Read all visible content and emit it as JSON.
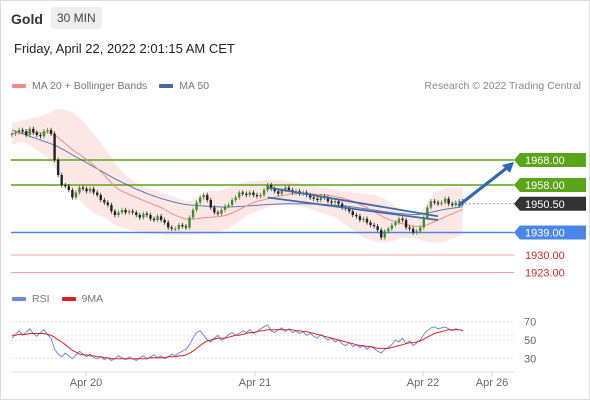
{
  "header": {
    "instrument": "Gold",
    "timeframe": "30 MIN",
    "datetime": "Friday, April 22, 2022 2:01:15 AM CET"
  },
  "legend": {
    "ma20_label": "MA 20 + Bollinger Bands",
    "ma50_label": "MA 50",
    "copyright": "Research © 2022 Trading Central",
    "rsi_label": "RSI",
    "rsi_ma_label": "9MA"
  },
  "colors": {
    "ma20": "#f28b82",
    "ma50": "#3e6aa8",
    "bollinger_fill": "#fde3e1",
    "resistance": "#58a617",
    "support": "#4a86e8",
    "target_line": "#f5a3a3",
    "target_text": "#d62a2a",
    "last_price": "#333333",
    "arrow": "#2f67b2",
    "rsi": "#6b8cde",
    "rsi_ma": "#e02020",
    "candle_up": "#3c8f2f",
    "candle_down": "#222222"
  },
  "chart_data": [
    {
      "type": "candlestick",
      "title": "Gold",
      "timeframe": "30 MIN",
      "x_labels": [
        "Apr 20",
        "Apr 21",
        "Apr 22",
        "Apr 26"
      ],
      "ylim": [
        1918,
        1992
      ],
      "levels": [
        {
          "value": 1968.0,
          "label": "1968.00",
          "kind": "resistance"
        },
        {
          "value": 1958.0,
          "label": "1958.00",
          "kind": "resistance"
        },
        {
          "value": 1950.5,
          "label": "1950.50",
          "kind": "last"
        },
        {
          "value": 1939.0,
          "label": "1939.00",
          "kind": "support"
        },
        {
          "value": 1930.0,
          "label": "1930.00",
          "kind": "target"
        },
        {
          "value": 1923.0,
          "label": "1923.00",
          "kind": "target"
        }
      ],
      "close": [
        1978.5,
        1979.0,
        1980.0,
        1979.5,
        1978.0,
        1980.5,
        1979.0,
        1978.0,
        1977.5,
        1979.5,
        1980.0,
        1978.5,
        1968.0,
        1962.0,
        1958.0,
        1957.5,
        1956.0,
        1953.0,
        1955.0,
        1957.0,
        1956.5,
        1955.5,
        1956.5,
        1955.0,
        1954.0,
        1952.0,
        1951.0,
        1950.0,
        1947.5,
        1946.0,
        1947.0,
        1948.0,
        1947.0,
        1947.5,
        1947.0,
        1946.0,
        1945.0,
        1946.5,
        1946.0,
        1944.5,
        1944.0,
        1945.5,
        1944.0,
        1943.0,
        1941.0,
        1940.5,
        1940.5,
        1942.0,
        1941.5,
        1941.0,
        1945.0,
        1948.0,
        1951.0,
        1953.0,
        1954.0,
        1952.0,
        1949.0,
        1947.0,
        1946.5,
        1948.0,
        1949.5,
        1950.0,
        1952.0,
        1953.0,
        1955.0,
        1954.5,
        1954.0,
        1955.0,
        1954.0,
        1953.5,
        1954.0,
        1956.0,
        1958.0,
        1956.5,
        1955.5,
        1954.5,
        1956.0,
        1957.0,
        1956.0,
        1955.0,
        1955.5,
        1954.5,
        1955.0,
        1954.0,
        1953.0,
        1952.5,
        1952.0,
        1953.5,
        1953.0,
        1951.5,
        1951.0,
        1951.5,
        1950.5,
        1949.0,
        1948.5,
        1947.5,
        1946.0,
        1945.5,
        1944.0,
        1944.5,
        1943.0,
        1942.0,
        1941.5,
        1940.0,
        1937.0,
        1939.5,
        1940.5,
        1942.0,
        1943.0,
        1944.5,
        1944.0,
        1941.0,
        1940.5,
        1939.0,
        1939.5,
        1941.0,
        1945.0,
        1949.0,
        1951.5,
        1951.0,
        1950.5,
        1951.0,
        1952.5,
        1950.5,
        1950.0,
        1951.0,
        1951.5,
        1950.5
      ],
      "ma20": [
        1978.5,
        1978.7,
        1979.0,
        1979.1,
        1978.9,
        1979.2,
        1979.1,
        1979.0,
        1978.8,
        1978.9,
        1979.0,
        1978.9,
        1978.1,
        1977.0,
        1975.7,
        1974.6,
        1973.4,
        1972.2,
        1971.1,
        1970.3,
        1969.3,
        1968.2,
        1967.1,
        1965.9,
        1964.6,
        1963.3,
        1961.9,
        1960.4,
        1958.9,
        1957.3,
        1956.2,
        1955.5,
        1954.9,
        1954.2,
        1953.6,
        1953.0,
        1952.4,
        1951.8,
        1951.3,
        1950.7,
        1950.1,
        1949.6,
        1949.0,
        1948.2,
        1947.4,
        1946.6,
        1945.9,
        1945.3,
        1944.8,
        1944.4,
        1944.3,
        1944.4,
        1944.5,
        1944.7,
        1944.9,
        1945.0,
        1945.1,
        1945.2,
        1945.3,
        1945.5,
        1945.8,
        1946.2,
        1946.8,
        1947.5,
        1948.2,
        1948.9,
        1949.6,
        1950.3,
        1950.9,
        1951.5,
        1951.8,
        1952.1,
        1952.5,
        1952.8,
        1953.1,
        1953.4,
        1953.7,
        1954.0,
        1954.2,
        1954.4,
        1954.5,
        1954.6,
        1954.6,
        1954.6,
        1954.5,
        1954.4,
        1954.3,
        1954.2,
        1954.1,
        1953.9,
        1953.7,
        1953.4,
        1953.1,
        1952.8,
        1952.4,
        1952.0,
        1951.5,
        1950.9,
        1950.3,
        1949.6,
        1948.9,
        1948.1,
        1947.4,
        1946.6,
        1945.7,
        1944.9,
        1944.3,
        1943.8,
        1943.3,
        1942.9,
        1942.5,
        1942.2,
        1941.9,
        1941.6,
        1941.4,
        1941.4,
        1941.7,
        1942.1,
        1942.7,
        1943.4,
        1944.0,
        1944.6,
        1945.3,
        1945.9,
        1946.5,
        1947.1,
        1947.7,
        1948.2
      ],
      "bb_upper": [
        1983.0,
        1983.0,
        1983.5,
        1984.0,
        1984.0,
        1984.5,
        1985.0,
        1985.0,
        1985.5,
        1986.0,
        1986.5,
        1987.0,
        1988.0,
        1988.5,
        1988.5,
        1988.0,
        1987.5,
        1987.0,
        1986.0,
        1985.0,
        1983.5,
        1982.0,
        1980.0,
        1978.5,
        1977.0,
        1975.0,
        1973.0,
        1971.0,
        1969.0,
        1967.0,
        1965.0,
        1963.5,
        1962.0,
        1961.0,
        1960.0,
        1959.0,
        1958.0,
        1957.5,
        1957.0,
        1956.5,
        1956.0,
        1955.5,
        1955.0,
        1954.5,
        1954.0,
        1953.5,
        1953.0,
        1952.5,
        1952.0,
        1951.5,
        1951.5,
        1952.0,
        1953.0,
        1954.0,
        1955.0,
        1955.5,
        1955.5,
        1955.5,
        1955.5,
        1956.0,
        1956.5,
        1957.0,
        1957.5,
        1958.0,
        1958.5,
        1959.0,
        1959.0,
        1959.5,
        1959.5,
        1959.5,
        1959.5,
        1960.0,
        1960.0,
        1960.0,
        1960.0,
        1960.0,
        1960.0,
        1959.5,
        1959.5,
        1959.0,
        1959.0,
        1958.5,
        1958.5,
        1958.0,
        1958.0,
        1957.5,
        1957.5,
        1957.0,
        1957.0,
        1956.5,
        1956.5,
        1956.0,
        1956.0,
        1955.5,
        1955.5,
        1955.5,
        1955.0,
        1955.0,
        1955.0,
        1954.5,
        1954.5,
        1954.0,
        1954.0,
        1953.5,
        1953.0,
        1952.5,
        1951.5,
        1950.5,
        1949.5,
        1948.5,
        1947.5,
        1947.0,
        1946.5,
        1946.0,
        1946.5,
        1947.0,
        1949.0,
        1951.0,
        1953.0,
        1954.5,
        1955.5,
        1956.0,
        1956.5,
        1957.0,
        1957.0,
        1957.0,
        1957.0,
        1957.0
      ],
      "bb_lower": [
        1974.0,
        1974.5,
        1975.0,
        1975.0,
        1974.5,
        1974.0,
        1973.0,
        1972.0,
        1971.0,
        1970.0,
        1968.5,
        1967.0,
        1965.0,
        1963.0,
        1961.0,
        1959.0,
        1957.0,
        1955.0,
        1953.5,
        1952.0,
        1950.5,
        1949.0,
        1948.0,
        1947.0,
        1946.0,
        1945.5,
        1945.0,
        1944.0,
        1943.0,
        1942.0,
        1941.5,
        1941.0,
        1940.5,
        1940.0,
        1939.8,
        1939.5,
        1939.0,
        1939.0,
        1938.8,
        1938.5,
        1938.5,
        1938.5,
        1938.5,
        1938.0,
        1938.0,
        1938.0,
        1938.0,
        1938.0,
        1938.0,
        1938.0,
        1938.0,
        1938.0,
        1938.0,
        1938.5,
        1938.5,
        1938.5,
        1938.5,
        1938.5,
        1939.0,
        1939.5,
        1940.0,
        1940.5,
        1941.5,
        1942.5,
        1943.5,
        1944.5,
        1945.5,
        1946.5,
        1947.0,
        1947.5,
        1948.0,
        1948.5,
        1949.0,
        1949.5,
        1950.0,
        1950.0,
        1950.0,
        1950.0,
        1950.0,
        1950.0,
        1949.5,
        1949.5,
        1949.0,
        1949.0,
        1948.5,
        1948.0,
        1947.5,
        1947.0,
        1946.5,
        1946.0,
        1945.5,
        1945.0,
        1944.0,
        1943.0,
        1942.0,
        1941.0,
        1940.0,
        1939.0,
        1938.0,
        1937.0,
        1936.5,
        1936.0,
        1935.5,
        1935.0,
        1935.0,
        1935.0,
        1935.0,
        1935.5,
        1936.0,
        1936.5,
        1937.0,
        1937.0,
        1937.0,
        1937.0,
        1936.5,
        1936.0,
        1935.5,
        1935.0,
        1935.0,
        1935.0,
        1935.0,
        1935.0,
        1935.5,
        1936.0,
        1936.5,
        1937.0,
        1937.5,
        1938.0
      ],
      "ma50": [
        1980.0,
        1979.5,
        1979.0,
        1978.5,
        1978.0,
        1977.5,
        1977.0,
        1976.5,
        1976.0,
        1975.5,
        1975.0,
        1974.5,
        1974.0,
        1973.3,
        1972.5,
        1971.7,
        1970.9,
        1970.1,
        1969.3,
        1968.5,
        1967.7,
        1966.9,
        1966.1,
        1965.3,
        1964.5,
        1963.7,
        1962.9,
        1962.1,
        1961.3,
        1960.5,
        1959.8,
        1959.1,
        1958.4,
        1957.7,
        1957.0,
        1956.4,
        1955.8,
        1955.2,
        1954.6,
        1954.1,
        1953.6,
        1953.1,
        1952.6,
        1952.2,
        1951.8,
        1951.4,
        1951.0,
        1950.7,
        1950.4,
        1950.2,
        1950.0,
        1949.9,
        1949.8,
        1949.7,
        1949.6,
        1949.5,
        1949.4,
        1949.3,
        1949.3,
        1949.2,
        1949.2,
        1949.2,
        1949.3,
        1949.3,
        1949.4,
        1949.5,
        1949.6,
        1949.7,
        1949.8,
        1949.9,
        1950.0,
        1950.1,
        1950.2,
        1950.3,
        1950.3,
        1950.4,
        1950.4,
        1950.5,
        1950.5,
        1950.5,
        1950.5,
        1950.5,
        1950.5,
        1950.5,
        1950.4,
        1950.4,
        1950.3,
        1950.3,
        1950.2,
        1950.1,
        1950.0,
        1949.9,
        1949.8,
        1949.7,
        1949.6,
        1949.4,
        1949.2,
        1949.0,
        1948.8,
        1948.6,
        1948.4,
        1948.2,
        1948.0,
        1947.8,
        1947.5,
        1947.3,
        1947.1,
        1946.9,
        1946.7,
        1946.6,
        1946.5,
        1946.4,
        1946.3,
        1946.2,
        1946.2,
        1946.3,
        1946.5,
        1946.8,
        1947.1,
        1947.4,
        1947.7,
        1948.0,
        1948.3,
        1948.5,
        1948.7,
        1948.9,
        1949.1,
        1949.3
      ],
      "trendlines": [
        {
          "from": {
            "i": 72,
            "v": 1957.0
          },
          "to": {
            "i": 120,
            "v": 1945.5
          }
        },
        {
          "from": {
            "i": 72,
            "v": 1953.0
          },
          "to": {
            "i": 120,
            "v": 1944.0
          }
        }
      ],
      "projection": {
        "from": {
          "i": 126,
          "v": 1950.0
        },
        "to": {
          "i": 137,
          "v": 1968.0
        }
      }
    },
    {
      "type": "line",
      "title": "RSI",
      "yticks": [
        30,
        50,
        70
      ],
      "ylim": [
        20,
        80
      ],
      "reference": 55,
      "series": [
        {
          "name": "RSI",
          "values": [
            52,
            56,
            60,
            55,
            58,
            62,
            57,
            54,
            58,
            61,
            56,
            52,
            40,
            35,
            32,
            36,
            33,
            30,
            34,
            38,
            35,
            32,
            35,
            31,
            30,
            32,
            29,
            31,
            28,
            30,
            33,
            31,
            29,
            32,
            30,
            28,
            31,
            33,
            30,
            32,
            34,
            31,
            33,
            30,
            32,
            35,
            33,
            36,
            38,
            40,
            45,
            52,
            58,
            60,
            55,
            50,
            48,
            52,
            55,
            50,
            52,
            56,
            58,
            55,
            57,
            60,
            58,
            61,
            57,
            59,
            62,
            64,
            66,
            60,
            58,
            61,
            63,
            59,
            62,
            58,
            60,
            57,
            59,
            55,
            57,
            54,
            52,
            56,
            53,
            50,
            52,
            48,
            50,
            46,
            44,
            47,
            43,
            45,
            42,
            44,
            40,
            43,
            41,
            38,
            36,
            40,
            42,
            45,
            50,
            48,
            52,
            46,
            49,
            44,
            47,
            50,
            56,
            60,
            63,
            64,
            62,
            63,
            64,
            62,
            60,
            62,
            61,
            60
          ]
        },
        {
          "name": "9MA",
          "values": [
            55,
            55,
            56,
            56,
            56,
            57,
            57,
            57,
            57,
            57,
            56,
            55,
            53,
            50,
            48,
            45,
            42,
            39,
            37,
            35,
            34,
            34,
            33,
            33,
            32,
            32,
            31,
            31,
            30,
            30,
            30,
            30,
            30,
            30,
            30,
            30,
            30,
            30,
            30,
            31,
            31,
            31,
            31,
            31,
            32,
            32,
            32,
            33,
            33,
            34,
            36,
            38,
            41,
            44,
            47,
            49,
            50,
            51,
            52,
            52,
            52,
            53,
            54,
            55,
            55,
            56,
            57,
            58,
            58,
            59,
            60,
            60,
            61,
            61,
            61,
            61,
            61,
            61,
            61,
            61,
            60,
            60,
            59,
            59,
            58,
            57,
            56,
            55,
            54,
            53,
            52,
            51,
            50,
            49,
            48,
            47,
            46,
            45,
            44,
            44,
            43,
            43,
            42,
            41,
            41,
            41,
            41,
            42,
            43,
            44,
            45,
            46,
            47,
            47,
            48,
            49,
            51,
            53,
            55,
            57,
            58,
            59,
            60,
            61,
            61,
            61,
            61,
            60
          ]
        }
      ]
    }
  ]
}
